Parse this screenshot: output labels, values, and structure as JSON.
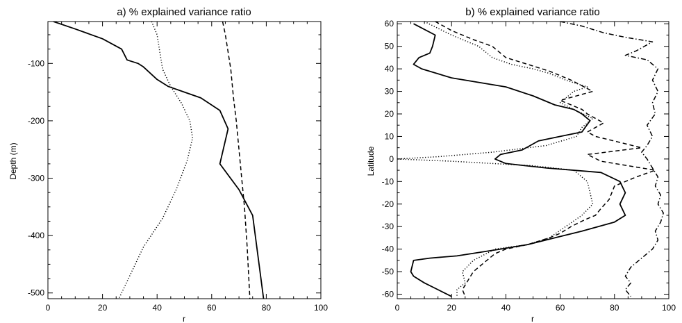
{
  "chart_data": [
    {
      "type": "line",
      "title": "a) % explained variance ratio",
      "xlabel": "r",
      "ylabel": "Depth (m)",
      "xlim": [
        0,
        100
      ],
      "ylim": [
        -510,
        -27
      ],
      "grid": false,
      "xticks": [
        0,
        20,
        40,
        60,
        80,
        100
      ],
      "yticks": [
        -100,
        -200,
        -300,
        -400,
        -500
      ],
      "series": [
        {
          "style": "solid",
          "x": [
            2,
            10,
            20,
            27,
            29,
            33,
            35,
            40,
            44,
            50,
            56,
            63,
            66,
            63,
            70,
            75,
            79
          ],
          "y": [
            -27,
            -40,
            -57,
            -75,
            -94,
            -100,
            -106,
            -128,
            -140,
            -150,
            -160,
            -182,
            -214,
            -275,
            -320,
            -365,
            -510
          ]
        },
        {
          "style": "dotted",
          "x": [
            38,
            40,
            41,
            42,
            45,
            49,
            52,
            53,
            51,
            47,
            42,
            35,
            31,
            26
          ],
          "y": [
            -27,
            -50,
            -80,
            -110,
            -140,
            -170,
            -200,
            -230,
            -270,
            -320,
            -370,
            -420,
            -460,
            -510
          ]
        },
        {
          "style": "dashed",
          "x": [
            64,
            65,
            66,
            67,
            68,
            69,
            70,
            71,
            72,
            73,
            74
          ],
          "y": [
            -27,
            -50,
            -80,
            -110,
            -160,
            -200,
            -250,
            -300,
            -350,
            -420,
            -510
          ]
        }
      ]
    },
    {
      "type": "line",
      "title": "b) % explained variance ratio",
      "xlabel": "r",
      "ylabel": "Latitude",
      "xlim": [
        0,
        100
      ],
      "ylim": [
        -62,
        61
      ],
      "grid": false,
      "xticks": [
        0,
        20,
        40,
        60,
        80,
        100
      ],
      "yticks": [
        60,
        50,
        40,
        30,
        20,
        10,
        0,
        -10,
        -20,
        -30,
        -40,
        -50,
        -60
      ],
      "series": [
        {
          "style": "solid",
          "x": [
            6,
            14,
            13,
            12,
            8,
            6,
            9,
            20,
            30,
            40,
            50,
            58,
            65,
            68,
            71,
            68,
            60,
            52,
            49,
            46,
            38,
            36,
            40,
            55,
            75,
            82,
            84,
            82,
            84,
            80,
            68,
            58,
            48,
            38,
            22,
            12,
            6,
            5,
            6,
            10,
            15,
            20
          ],
          "y": [
            60,
            55,
            50,
            47,
            45,
            42,
            40,
            36,
            34,
            32,
            28,
            24,
            22,
            20,
            17,
            12,
            10,
            8,
            6,
            4,
            2,
            0,
            -2,
            -4,
            -6,
            -10,
            -15,
            -20,
            -25,
            -28,
            -32,
            -35,
            -38,
            -40,
            -43,
            -44,
            -45,
            -50,
            -52,
            -55,
            -58,
            -61
          ]
        },
        {
          "style": "dotted",
          "x": [
            10,
            20,
            30,
            35,
            42,
            50,
            56,
            62,
            70,
            65,
            60,
            65,
            72,
            68,
            66,
            55,
            35,
            15,
            0,
            20,
            50,
            65,
            70,
            72,
            68,
            62,
            56,
            48,
            36,
            28,
            24,
            25,
            22,
            22
          ],
          "y": [
            61,
            55,
            50,
            45,
            42,
            40,
            38,
            35,
            32,
            30,
            25,
            22,
            18,
            14,
            10,
            6,
            3,
            1,
            0,
            -1,
            -3,
            -5,
            -10,
            -20,
            -25,
            -30,
            -35,
            -38,
            -40,
            -45,
            -50,
            -55,
            -58,
            -61
          ]
        },
        {
          "style": "dashed",
          "x": [
            14,
            20,
            28,
            35,
            40,
            48,
            56,
            64,
            72,
            60,
            68,
            70,
            76,
            70,
            73,
            90,
            70,
            75,
            95,
            88,
            80,
            78,
            75,
            73,
            69,
            64,
            60,
            56,
            48,
            40,
            36,
            32,
            28,
            26,
            24,
            25
          ],
          "y": [
            61,
            57,
            53,
            50,
            45,
            42,
            39,
            35,
            30,
            26,
            22,
            20,
            16,
            12,
            10,
            5,
            2,
            -1,
            -5,
            -8,
            -12,
            -18,
            -22,
            -25,
            -27,
            -30,
            -33,
            -35,
            -38,
            -40,
            -42,
            -46,
            -50,
            -54,
            -58,
            -61
          ]
        },
        {
          "style": "dashdot",
          "x": [
            60,
            68,
            76,
            84,
            94,
            88,
            84,
            92,
            96,
            94,
            96,
            94,
            95,
            92,
            94,
            92,
            90,
            92,
            94,
            96,
            95,
            97,
            96,
            98,
            97,
            95,
            96,
            94,
            90,
            86,
            84,
            86,
            84,
            86
          ],
          "y": [
            61,
            59,
            56,
            54,
            52,
            48,
            46,
            44,
            40,
            35,
            30,
            25,
            20,
            15,
            10,
            6,
            3,
            0,
            -4,
            -8,
            -12,
            -16,
            -20,
            -24,
            -28,
            -32,
            -36,
            -40,
            -44,
            -48,
            -52,
            -55,
            -58,
            -61
          ]
        }
      ]
    }
  ]
}
